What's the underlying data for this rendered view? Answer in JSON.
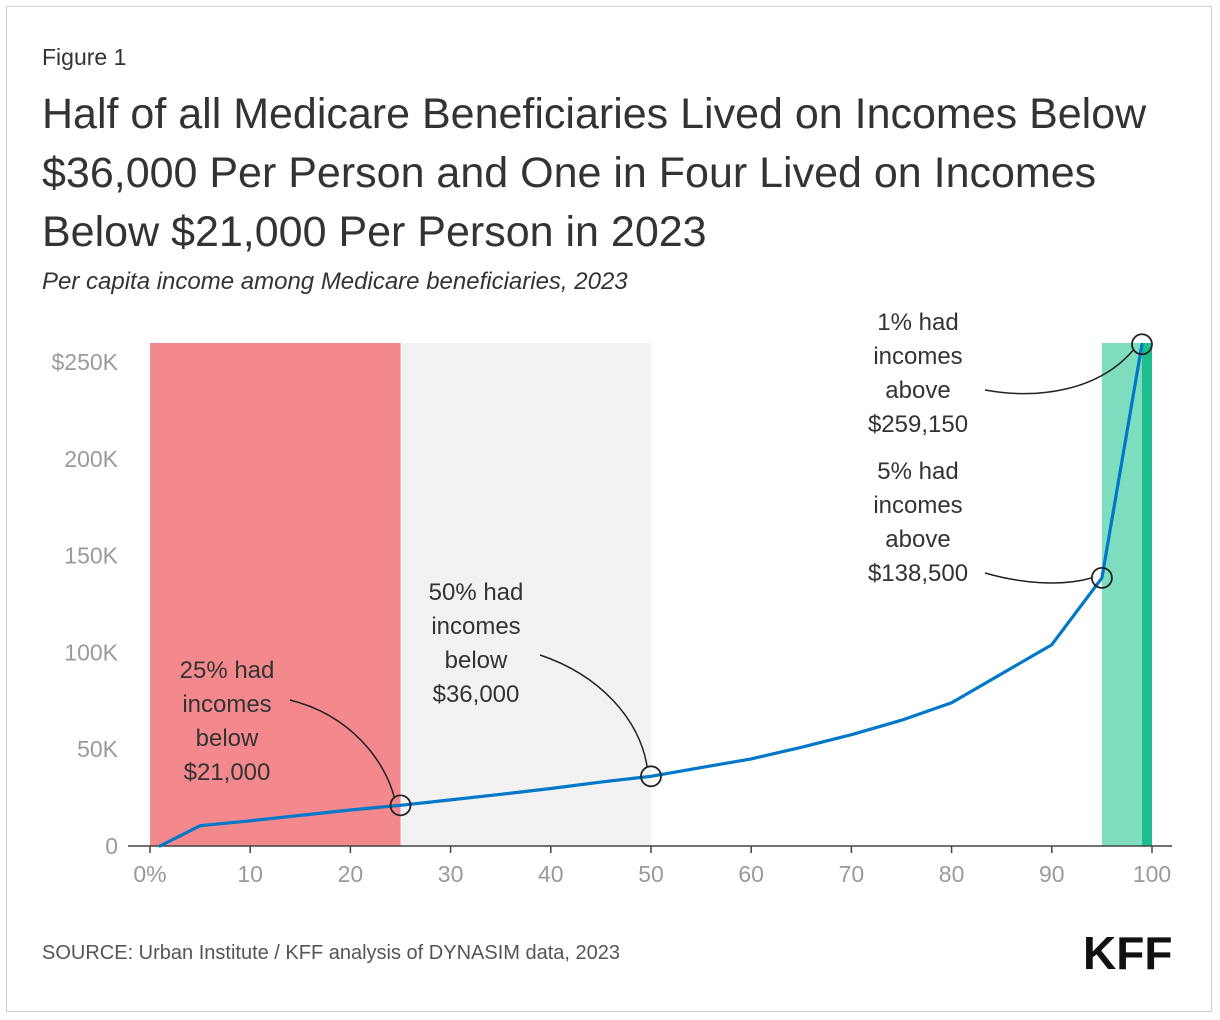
{
  "header": {
    "figure_label": "Figure 1",
    "title": "Half of all Medicare Beneficiaries Lived on Incomes Below $36,000 Per Person and One in Four Lived on Incomes Below $21,000 Per Person in 2023",
    "subtitle": "Per capita income among Medicare beneficiaries, 2023"
  },
  "footer": {
    "source": "SOURCE: Urban Institute / KFF analysis of DYNASIM data, 2023",
    "logo": "KFF"
  },
  "colors": {
    "line": "#0077c8",
    "band_low": "#f4898d",
    "band_mid": "#f2f2f2",
    "band_top5": "#7edcbf",
    "band_top1": "#1fbe8f",
    "axis": "#444444",
    "tick_text": "#9a9a9a"
  },
  "chart_data": {
    "type": "line",
    "title": "Per capita income among Medicare beneficiaries, 2023",
    "xlabel": "",
    "ylabel": "",
    "xlim": [
      0,
      102
    ],
    "ylim": [
      0,
      260000
    ],
    "x_ticks": [
      0,
      10,
      20,
      30,
      40,
      50,
      60,
      70,
      80,
      90,
      100
    ],
    "x_tick_labels": [
      "0%",
      "10",
      "20",
      "30",
      "40",
      "50",
      "60",
      "70",
      "80",
      "90",
      "100"
    ],
    "y_ticks": [
      0,
      50000,
      100000,
      150000,
      200000,
      250000
    ],
    "y_tick_labels": [
      "0",
      "50K",
      "100K",
      "150K",
      "200K",
      "$250K"
    ],
    "series": [
      {
        "name": "Per capita income",
        "x": [
          1,
          5,
          10,
          15,
          20,
          25,
          30,
          35,
          40,
          45,
          50,
          55,
          60,
          65,
          70,
          75,
          80,
          85,
          90,
          95,
          99
        ],
        "values": [
          0,
          10500,
          13000,
          15800,
          18600,
          21000,
          23800,
          26700,
          29700,
          33000,
          36000,
          40500,
          45000,
          51000,
          57500,
          65000,
          74000,
          89000,
          104000,
          138500,
          259150
        ]
      }
    ],
    "bands": [
      {
        "name": "bottom-25",
        "x_from": 0,
        "x_to": 25,
        "color_key": "band_low"
      },
      {
        "name": "25-to-50",
        "x_from": 25,
        "x_to": 50,
        "color_key": "band_mid"
      },
      {
        "name": "top-5",
        "x_from": 95,
        "x_to": 99,
        "color_key": "band_top5"
      },
      {
        "name": "top-1",
        "x_from": 99,
        "x_to": 100,
        "color_key": "band_top1"
      }
    ],
    "annotations": [
      {
        "name": "p25",
        "lines": [
          "25% had",
          "incomes",
          "below",
          "$21,000"
        ],
        "point_x": 25,
        "point_y": 21000
      },
      {
        "name": "p50",
        "lines": [
          "50% had",
          "incomes",
          "below",
          "$36,000"
        ],
        "point_x": 50,
        "point_y": 36000
      },
      {
        "name": "p95",
        "lines": [
          "5% had",
          "incomes",
          "above",
          "$138,500"
        ],
        "point_x": 95,
        "point_y": 138500
      },
      {
        "name": "p99",
        "lines": [
          "1% had",
          "incomes",
          "above",
          "$259,150"
        ],
        "point_x": 99,
        "point_y": 259150
      }
    ]
  }
}
